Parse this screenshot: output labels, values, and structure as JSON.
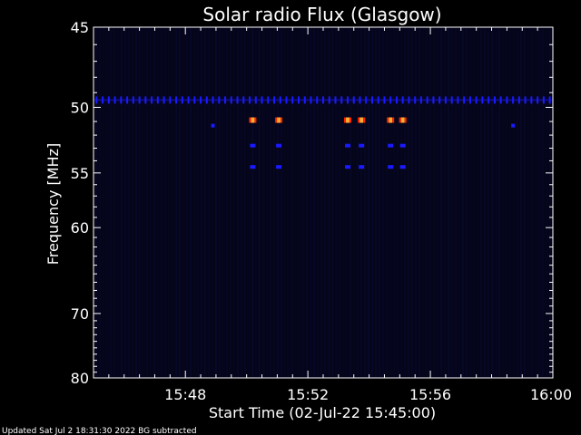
{
  "chart_data": {
    "type": "heatmap",
    "title": "Solar radio Flux (Glasgow)",
    "xlabel": "Start Time (02-Jul-22 15:45:00)",
    "ylabel": "Frequency [MHz]",
    "footer": "Updated Sat Jul  2 18:31:30 2022   BG subtracted",
    "x_range_min": [
      0,
      15
    ],
    "y_range_mhz": [
      45,
      80
    ],
    "y_scale": "reciprocal",
    "x_ticks": [
      {
        "min": 3,
        "label": "15:48"
      },
      {
        "min": 7,
        "label": "15:52"
      },
      {
        "min": 11,
        "label": "15:56"
      },
      {
        "min": 15,
        "label": "16:00"
      }
    ],
    "y_ticks": [
      {
        "mhz": 45,
        "label": "45"
      },
      {
        "mhz": 50,
        "label": "50"
      },
      {
        "mhz": 55,
        "label": "55"
      },
      {
        "mhz": 60,
        "label": "60"
      },
      {
        "mhz": 70,
        "label": "70"
      },
      {
        "mhz": 80,
        "label": "80"
      }
    ],
    "grid": false,
    "colors": {
      "background": "#000000",
      "plot_background": "#05051a",
      "axes": "#ffffff",
      "low_intensity": "#1a1aff",
      "mid_intensity": "#ff2200",
      "high_intensity": "#ffaa33"
    },
    "features": {
      "interference_band_mhz": 49.5,
      "interference_period_min": 0.2,
      "bursts": [
        {
          "t_min": 5.2,
          "f_mhz": 50.9,
          "intensity": "high"
        },
        {
          "t_min": 6.05,
          "f_mhz": 50.9,
          "intensity": "high"
        },
        {
          "t_min": 8.3,
          "f_mhz": 50.9,
          "intensity": "high"
        },
        {
          "t_min": 8.75,
          "f_mhz": 50.9,
          "intensity": "high"
        },
        {
          "t_min": 9.7,
          "f_mhz": 50.9,
          "intensity": "high"
        },
        {
          "t_min": 10.1,
          "f_mhz": 50.9,
          "intensity": "high"
        },
        {
          "t_min": 3.9,
          "f_mhz": 51.3,
          "intensity": "low"
        },
        {
          "t_min": 13.7,
          "f_mhz": 51.3,
          "intensity": "low"
        }
      ],
      "echo_mhz": [
        52.8,
        54.5
      ]
    }
  }
}
